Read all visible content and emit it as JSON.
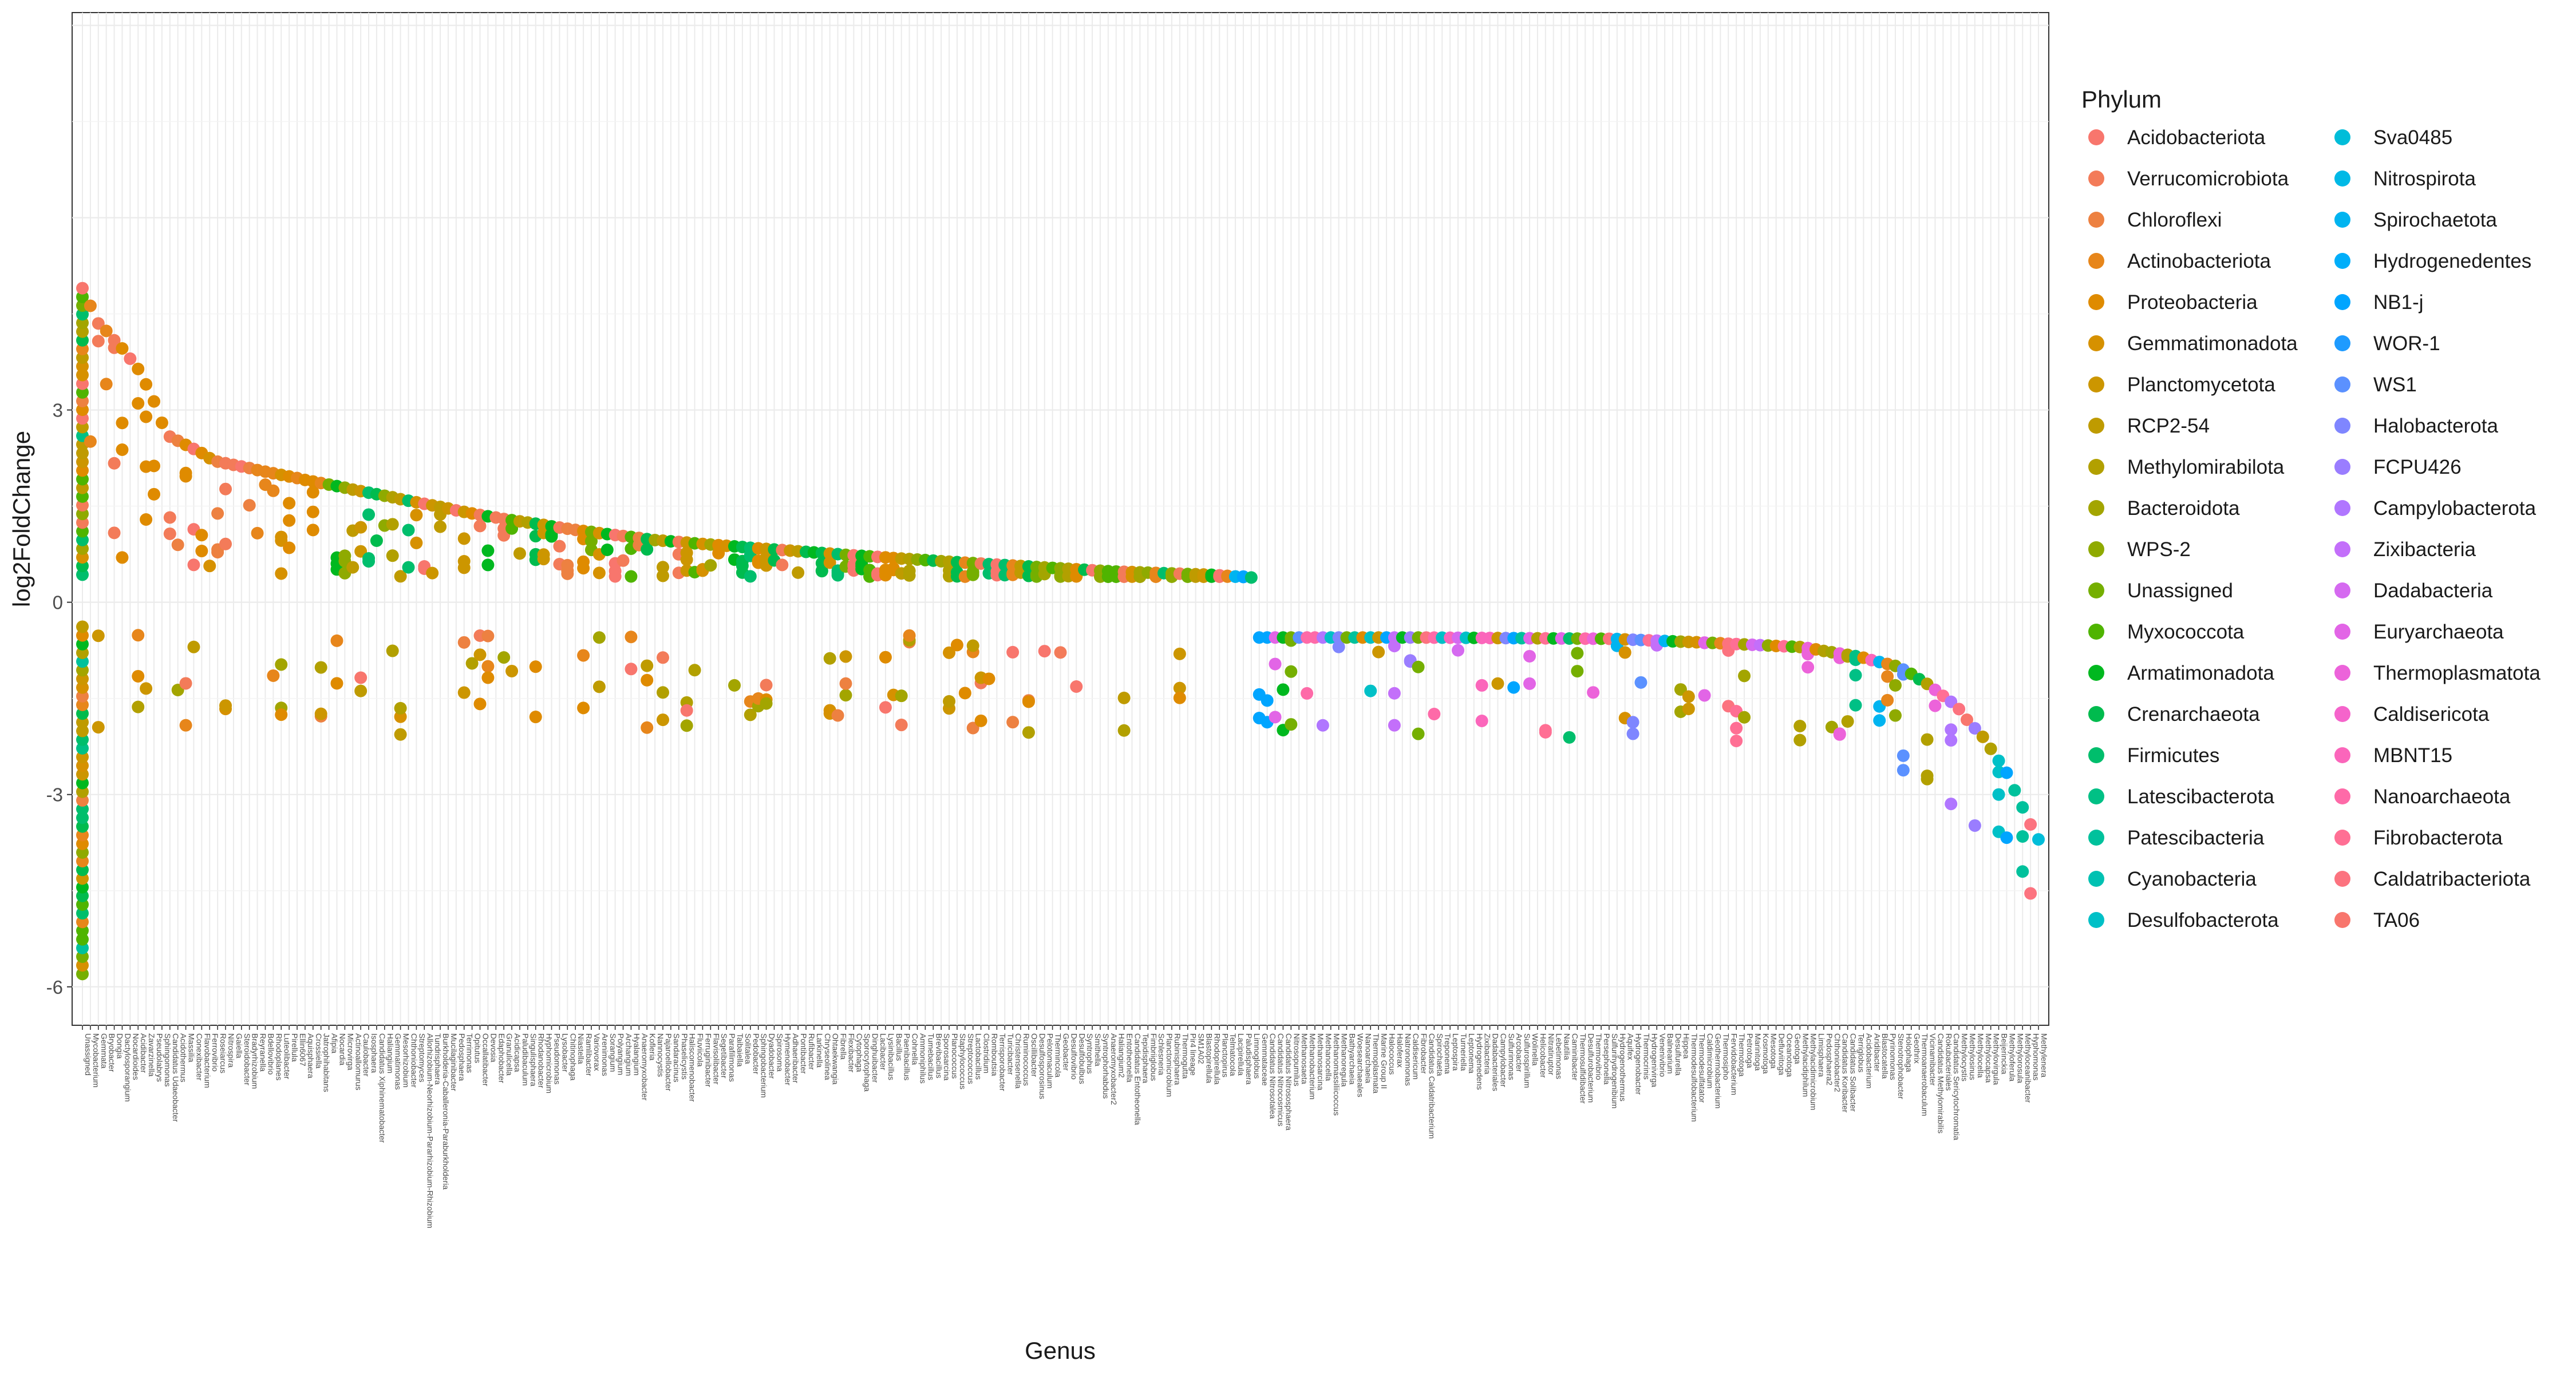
{
  "chart_data": {
    "type": "scatter",
    "xlabel": "Genus",
    "ylabel": "log2FoldChange",
    "ylim": [
      -6.6,
      9.2
    ],
    "yticks": [
      -6,
      -3,
      0,
      3
    ],
    "grid": true,
    "legend_position": "right",
    "legend_title": "Phylum",
    "phyla": [
      {
        "name": "Acidobacteriota",
        "color": "#F8766D"
      },
      {
        "name": "Verrucomicrobiota",
        "color": "#F37B59"
      },
      {
        "name": "Chloroflexi",
        "color": "#ED8141"
      },
      {
        "name": "Actinobacteriota",
        "color": "#E7861B"
      },
      {
        "name": "Proteobacteria",
        "color": "#DF8B00"
      },
      {
        "name": "Gemmatimonadota",
        "color": "#D69100"
      },
      {
        "name": "Planctomycetota",
        "color": "#CC9600"
      },
      {
        "name": "RCP2-54",
        "color": "#BF9B00"
      },
      {
        "name": "Methylomirabilota",
        "color": "#B2A000"
      },
      {
        "name": "Bacteroidota",
        "color": "#A3A500"
      },
      {
        "name": "WPS-2",
        "color": "#8FAA00"
      },
      {
        "name": "Unassigned",
        "color": "#75AF00"
      },
      {
        "name": "Myxococcota",
        "color": "#4FB400"
      },
      {
        "name": "Armatimonadota",
        "color": "#00B81F"
      },
      {
        "name": "Crenarchaeota",
        "color": "#00BB4E"
      },
      {
        "name": "Firmicutes",
        "color": "#00BE6C"
      },
      {
        "name": "Latescibacterota",
        "color": "#00C085"
      },
      {
        "name": "Patescibacteria",
        "color": "#00C19C"
      },
      {
        "name": "Cyanobacteria",
        "color": "#00C1B2"
      },
      {
        "name": "Desulfobacterota",
        "color": "#00C0C7"
      },
      {
        "name": "Sva0485",
        "color": "#00BDD9"
      },
      {
        "name": "Nitrospirota",
        "color": "#00B9E6"
      },
      {
        "name": "Spirochaetota",
        "color": "#00B4F0"
      },
      {
        "name": "Hydrogenedentes",
        "color": "#00AEFA"
      },
      {
        "name": "NB1-j",
        "color": "#00A5FF"
      },
      {
        "name": "WOR-1",
        "color": "#1E9BFF"
      },
      {
        "name": "WS1",
        "color": "#5B91FF"
      },
      {
        "name": "Halobacterota",
        "color": "#7F86FF"
      },
      {
        "name": "FCPU426",
        "color": "#9A7DFF"
      },
      {
        "name": "Campylobacterota",
        "color": "#B076FF"
      },
      {
        "name": "Zixibacteria",
        "color": "#C36FFA"
      },
      {
        "name": "Dadabacteria",
        "color": "#D56AF0"
      },
      {
        "name": "Euryarchaeota",
        "color": "#E265E6"
      },
      {
        "name": "Thermoplasmatota",
        "color": "#EC63DA"
      },
      {
        "name": "Caldisericota",
        "color": "#F564CB"
      },
      {
        "name": "MBNT15",
        "color": "#FB66BB"
      },
      {
        "name": "Nanoarchaeota",
        "color": "#FE6AA8"
      },
      {
        "name": "Fibrobacterota",
        "color": "#FF6F94"
      },
      {
        "name": "Caldatribacteriota",
        "color": "#FC737F"
      },
      {
        "name": "TA06",
        "color": "#F8766D"
      }
    ],
    "genera": [
      "Unassigned",
      "Mycobacterium",
      "Gemmata",
      "Bryobacter",
      "Dongia",
      "Dactylosporangium",
      "Nocardioides",
      "Acidibacter",
      "Zavarzinella",
      "Pseudolabrys",
      "Sphingomonas",
      "Candidatus Udaeobacter",
      "Acidothermus",
      "Massilia",
      "Conexibacter",
      "Flavobacterium",
      "Ferrovibrio",
      "Roseiarcus",
      "Nitrospira",
      "Gaiella",
      "Steroidobacter",
      "Bradyrhizobium",
      "Reyranella",
      "Bdellovibrio",
      "Rhodoplanes",
      "Luteolibacter",
      "Pirellula",
      "Ellin6067",
      "Aquisphaera",
      "Crossiella",
      "Jatrophihabitans",
      "Afipia",
      "Nocardia",
      "Microvirga",
      "Actinoallomurus",
      "Caulobacter",
      "Isosphaera",
      "Candidatus Xiphinematobacter",
      "Haliangium",
      "Gemmatimonas",
      "Mesorhizobium",
      "Chthoniobacter",
      "Streptomyces",
      "Allorhizobium-Neorhizobium-Pararhizobium-Rhizobium",
      "Tundrisphaera",
      "Burkholderia-Caballeronia-Paraburkholderia",
      "Mucilaginibacter",
      "Pedosphaera",
      "Terrimonas",
      "Opitutus",
      "Occallatibacter",
      "Devosia",
      "Edaphobacter",
      "Granulicella",
      "Acidicapsa",
      "Paludibaculum",
      "Singulisphaera",
      "Rhodanobacter",
      "Hyphomicrobium",
      "Pseudomonas",
      "Lysobacter",
      "Chitinophaga",
      "Niastella",
      "Ramlibacter",
      "Variovorax",
      "Arenimonas",
      "Sorangium",
      "Polyangium",
      "Archangium",
      "Hyalangium",
      "Anaeromyxobacter",
      "Kofleria",
      "Nannocystis",
      "Pajaroellobacter",
      "Sandaracinus",
      "Phaselicystis",
      "Haliscomenobacter",
      "Fluviicola",
      "Ferruginibacter",
      "Flavisolibacter",
      "Segetibacter",
      "Parafilimonas",
      "Taibaiella",
      "Solitalea",
      "Pedobacter",
      "Sphingobacterium",
      "Dyadobacter",
      "Spirosoma",
      "Hymenobacter",
      "Adhaeribacter",
      "Pontibacter",
      "Rufibacter",
      "Larkinella",
      "Chryseolinea",
      "Ohtaekwangia",
      "Fibrella",
      "Flexibacter",
      "Cytophaga",
      "Sporocytophaga",
      "Dinghuibacter",
      "Lacibacter",
      "Lysinibacillus",
      "Bacillus",
      "Paenibacillus",
      "Cohnella",
      "Ammoniphilus",
      "Tumebacillus",
      "Brevibacillus",
      "Sporosarcina",
      "Planococcus",
      "Staphylococcus",
      "Streptococcus",
      "Lactobacillus",
      "Clostridium",
      "Romboutsia",
      "Terrisporobacter",
      "Turicibacter",
      "Christensenella",
      "Ruminococcus",
      "Oscillibacter",
      "Desulfosporosinus",
      "Pelotomaculum",
      "Thermincola",
      "Geobacter",
      "Desulfovibrio",
      "Desulfobulbus",
      "Syntrophus",
      "Smithella",
      "Syntrophorhabdus",
      "Anaeromyxobacter2",
      "Haliangium2",
      "Entotheonella",
      "Candidatus Entotheonella",
      "Tepidisphaera",
      "Fimbriiglobus",
      "Schlesneria",
      "Planctomicrobium",
      "Rubinisphaera",
      "Thermogutta",
      "Pir4 lineage",
      "SM1A02",
      "Blastopirellula",
      "Rhodopirellula",
      "Planctopirus",
      "Telmatocola",
      "Lacipirellula",
      "Paludisphaera",
      "Limnoglobus",
      "Gemmataceae",
      "Candidatus Nitrosotalea",
      "Candidatus Nitrocosmicus",
      "Candidatus Nitrososphaera",
      "Nitrosopumilus",
      "Methanosaeta",
      "Methanobacterium",
      "Methanosarcina",
      "Methanocella",
      "Methanomassiliicoccus",
      "Methanoregula",
      "Bathyarchaeia",
      "Woesearchaeales",
      "Nanoarchaeia",
      "Thermoplasmata",
      "Marine Group II",
      "Halococcus",
      "Haloferax",
      "Natronomonas",
      "Caldisericum",
      "Fibrobacter",
      "Candidatus Caldatribacterium",
      "Spirochaeta",
      "Treponema",
      "Leptospira",
      "Turneriella",
      "Leptonema",
      "Hydrogenedens",
      "Zixibacteria",
      "Dadabacteriales",
      "Campylobacter",
      "Sulfurimonas",
      "Arcobacter",
      "Sulfurospirillum",
      "Wolinella",
      "Helicobacter",
      "Nitratiruptor",
      "Lebetimonas",
      "Nautilia",
      "Caminibacter",
      "Thermosulfidibacter",
      "Desulfurobacterium",
      "Thermovibrio",
      "Persephonella",
      "Sulfurihydrogenibium",
      "Hydrogenothermus",
      "Aquifex",
      "Hydrogenobacter",
      "Thermocrinis",
      "Hydrogenivirga",
      "Venenivibrio",
      "Balnearium",
      "Desulfurella",
      "Hippea",
      "Thermodesulfobacterium",
      "Thermodesulfatator",
      "Caldimicrobium",
      "Geothermobacterium",
      "Thermosipho",
      "Fervidobacterium",
      "Thermotoga",
      "Petrotoga",
      "Marinitoga",
      "Kosmotoga",
      "Mesotoga",
      "Defluviitoga",
      "Oceanotoga",
      "Geotoga",
      "Methylacidiphilum",
      "Methylacidimicrobium",
      "Limisphaera",
      "Pedosphaera2",
      "Chthoniobacter2",
      "Candidatus Koribacter",
      "Candidatus Solibacter",
      "Terriglobus",
      "Acidobacterium",
      "Aridibacter",
      "Blastocatella",
      "Pyrinomonas",
      "Stenotrophobacter",
      "Holophaga",
      "Geothrix",
      "Thermoanaerobaculum",
      "Vicinamibacter",
      "Candidatus Methylomirabilis",
      "Rokubacteriales",
      "Candidatus Sericytochromatia",
      "Methylocystis",
      "Methylosinus",
      "Methylocella",
      "Methylocapsa",
      "Methylovirgula",
      "Beijerinckia",
      "Methyloferula",
      "Methylorosula",
      "Methyloceanibacter",
      "Hyphomonas",
      "Methylenera"
    ],
    "rank_curve": [
      [
        0,
        4.9
      ],
      [
        8,
        4.35
      ],
      [
        20,
        4.0
      ],
      [
        30,
        3.6
      ],
      [
        45,
        2.6
      ],
      [
        70,
        2.2
      ],
      [
        110,
        1.95
      ],
      [
        160,
        1.65
      ],
      [
        210,
        1.35
      ],
      [
        260,
        1.12
      ],
      [
        300,
        0.97
      ],
      [
        350,
        0.85
      ],
      [
        400,
        0.74
      ],
      [
        450,
        0.64
      ],
      [
        500,
        0.55
      ],
      [
        540,
        0.48
      ],
      [
        590,
        0.43
      ],
      [
        615,
        0.38
      ]
    ],
    "neg_curve": [
      [
        615,
        -0.55
      ],
      [
        700,
        -0.55
      ],
      [
        800,
        -0.57
      ],
      [
        850,
        -0.63
      ],
      [
        900,
        -0.7
      ],
      [
        930,
        -0.85
      ],
      [
        950,
        -1.0
      ],
      [
        965,
        -1.25
      ],
      [
        980,
        -1.6
      ],
      [
        995,
        -2.1
      ],
      [
        1010,
        -2.8
      ],
      [
        1022,
        -3.6
      ],
      [
        1024,
        -3.7
      ]
    ],
    "first_genus_y_range": [
      -5.8,
      4.9
    ]
  }
}
